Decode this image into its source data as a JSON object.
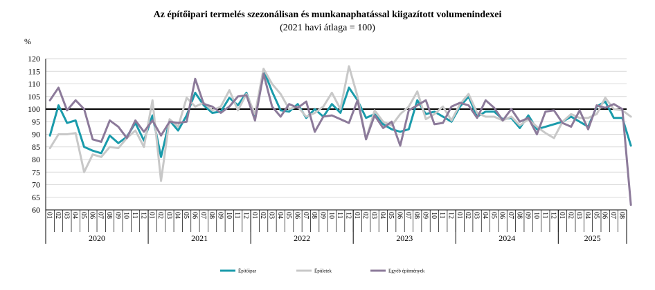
{
  "chart_data": {
    "type": "line",
    "title": "Az építőipari termelés szezonálisan és munkanaphatással kiigazított volumenindexei",
    "subtitle": "(2021 havi átlaga = 100)",
    "ylabel": "%",
    "ylim": [
      60,
      120
    ],
    "yticks": [
      60,
      65,
      70,
      75,
      80,
      85,
      90,
      95,
      100,
      105,
      110,
      115,
      120
    ],
    "reference_line": 100,
    "years": [
      "2020",
      "2021",
      "2022",
      "2023",
      "2024",
      "2025"
    ],
    "month_labels": [
      "01",
      "02",
      "03",
      "04",
      "05",
      "06",
      "07",
      "08",
      "09",
      "10",
      "11",
      "12"
    ],
    "last_year_months": 8,
    "legend_position": "bottom",
    "series": [
      {
        "name": "Építőipar",
        "color": "#1a9bab",
        "values": [
          89.5,
          101.5,
          94.5,
          95.5,
          85.0,
          83.5,
          82.5,
          89.5,
          86.5,
          89.0,
          94.5,
          87.5,
          97.5,
          81.0,
          95.5,
          91.5,
          97.5,
          106.5,
          101.5,
          98.5,
          99.0,
          104.5,
          101.5,
          106.5,
          97.0,
          115.5,
          107.0,
          99.5,
          99.0,
          102.0,
          96.5,
          100.0,
          97.0,
          102.0,
          98.5,
          108.5,
          103.5,
          96.5,
          98.0,
          94.0,
          92.0,
          91.0,
          92.0,
          103.5,
          98.0,
          99.0,
          97.0,
          95.0,
          101.0,
          105.0,
          97.0,
          99.0,
          99.0,
          96.0,
          96.5,
          92.5,
          97.5,
          92.0,
          93.0,
          94.0,
          95.0,
          97.0,
          95.0,
          93.0,
          101.0,
          103.0,
          96.5,
          96.5,
          85.5
        ]
      },
      {
        "name": "Épületek",
        "color": "#c8c8c8",
        "values": [
          84.5,
          90.0,
          90.0,
          90.5,
          75.0,
          82.0,
          81.0,
          85.0,
          84.5,
          88.5,
          91.5,
          85.0,
          103.5,
          71.5,
          96.0,
          93.0,
          104.5,
          101.0,
          102.5,
          99.5,
          101.0,
          107.5,
          99.5,
          106.0,
          98.0,
          116.0,
          110.0,
          106.0,
          100.0,
          101.0,
          97.0,
          98.5,
          101.0,
          106.5,
          100.0,
          117.0,
          105.0,
          88.0,
          99.5,
          95.0,
          93.5,
          98.0,
          101.0,
          107.0,
          96.0,
          98.0,
          101.0,
          95.5,
          102.0,
          106.0,
          98.5,
          97.0,
          97.0,
          95.5,
          97.0,
          93.5,
          96.0,
          93.0,
          90.5,
          88.5,
          95.0,
          98.0,
          96.5,
          96.5,
          98.0,
          104.5,
          100.0,
          99.5,
          97.0
        ]
      },
      {
        "name": "Egyéb építmények",
        "color": "#8c7a9a",
        "values": [
          103.5,
          108.5,
          99.5,
          103.5,
          100.0,
          88.0,
          87.0,
          95.5,
          93.0,
          88.5,
          95.5,
          91.0,
          95.5,
          89.5,
          95.0,
          94.5,
          95.0,
          112.0,
          102.0,
          101.0,
          98.5,
          101.0,
          105.0,
          105.5,
          95.5,
          114.0,
          101.0,
          97.0,
          102.0,
          100.5,
          103.0,
          91.0,
          97.0,
          97.5,
          96.0,
          94.5,
          103.5,
          88.0,
          97.5,
          92.5,
          95.0,
          85.5,
          99.5,
          101.5,
          103.5,
          94.0,
          94.5,
          101.0,
          102.5,
          101.5,
          96.5,
          103.5,
          100.5,
          95.5,
          100.0,
          95.0,
          96.5,
          90.0,
          99.0,
          99.5,
          94.5,
          93.0,
          99.5,
          92.0,
          101.5,
          100.5,
          102.0,
          100.0,
          62.0
        ]
      }
    ]
  }
}
